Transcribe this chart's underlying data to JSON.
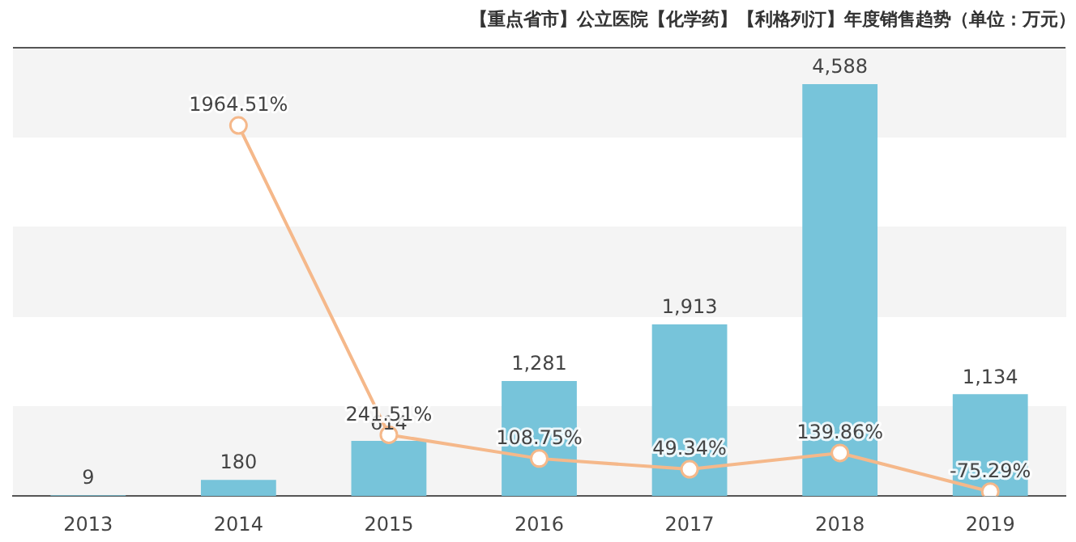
{
  "chart_data": {
    "type": "bar",
    "title": "【重点省市】公立医院【化学药】【利格列汀】年度销售趋势（单位：万元）",
    "categories": [
      "2013",
      "2014",
      "2015",
      "2016",
      "2017",
      "2018",
      "2019"
    ],
    "series": [
      {
        "color": "#77c4da",
        "values": [
          9,
          180,
          614,
          1281,
          1913,
          4588,
          1134
        ],
        "value_labels": [
          "9",
          "180",
          "614",
          "1,281",
          "1,913",
          "4,588",
          "1,134"
        ]
      },
      {
        "type": "line",
        "axis": "y2",
        "color": "#f5b88a",
        "marker": "circle",
        "values": [
          null,
          1964.51,
          241.51,
          108.75,
          49.34,
          139.86,
          -75.29
        ],
        "value_labels": [
          null,
          "1964.51%",
          "241.51%",
          "108.75%",
          "49.34%",
          "139.86%",
          "-75.29%"
        ]
      }
    ],
    "ylim": [
      0,
      5000
    ],
    "y2lim": [
      -100,
      2400
    ],
    "tick_labels": "x",
    "legend": false
  }
}
